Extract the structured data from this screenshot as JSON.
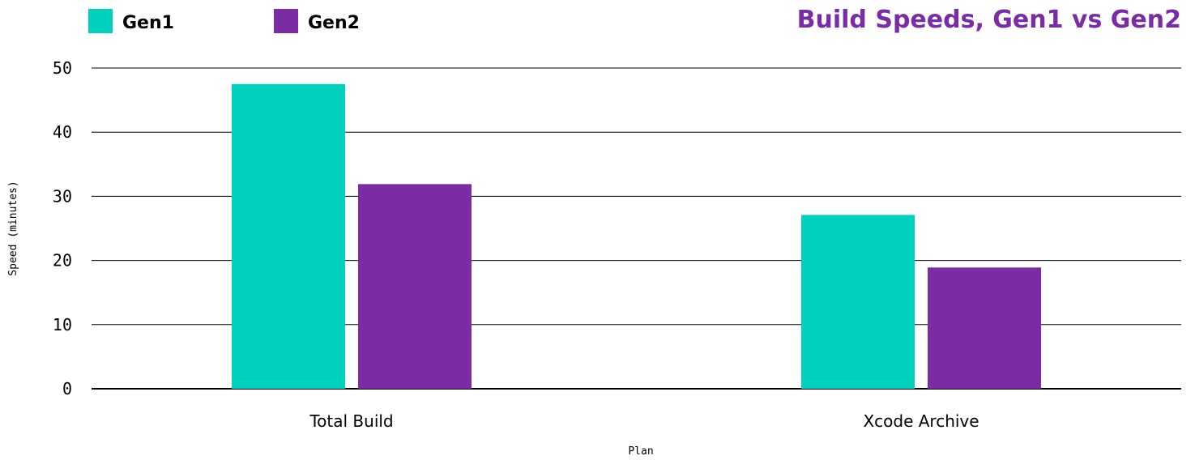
{
  "chart_data": {
    "type": "bar",
    "title": "Build Speeds, Gen1 vs Gen2",
    "xlabel": "Plan",
    "ylabel": "Speed (minutes)",
    "categories": [
      "Total Build",
      "Xcode Archive"
    ],
    "series": [
      {
        "name": "Gen1",
        "values": [
          47.5,
          27.1
        ],
        "color": "#00d1bd"
      },
      {
        "name": "Gen2",
        "values": [
          31.9,
          18.9
        ],
        "color": "#7b2ca5"
      }
    ],
    "ylim": [
      0,
      50
    ],
    "yticks": [
      0,
      10,
      20,
      30,
      40,
      50
    ],
    "grid": true,
    "legend_position": "top-left",
    "colors": {
      "title": "#7b2ca5",
      "text": "#000000",
      "grid": "#000000"
    }
  }
}
